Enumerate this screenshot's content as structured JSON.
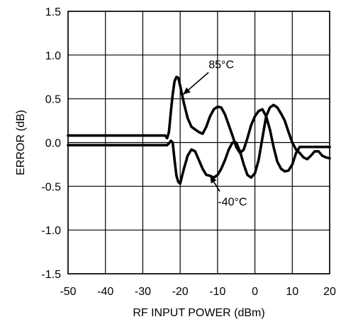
{
  "chart_data": {
    "type": "line",
    "xlabel": "RF INPUT POWER (dBm)",
    "ylabel": "ERROR (dB)",
    "xlim": [
      -50,
      20
    ],
    "ylim": [
      -1.5,
      1.5
    ],
    "xticks": [
      "-50",
      "-40",
      "-30",
      "-20",
      "-10",
      "0",
      "10",
      "20"
    ],
    "yticks": [
      "1.5",
      "1.0",
      "0.5",
      "0.0",
      "-0.5",
      "-1.0",
      "-1.5"
    ],
    "grid": true,
    "series": [
      {
        "name": "85°C",
        "x": [
          -50,
          -24,
          -23.5,
          -23,
          -22.5,
          -22,
          -21.5,
          -21,
          -20.5,
          -20,
          -19,
          -18,
          -17,
          -16,
          -15,
          -14,
          -13,
          -12,
          -11,
          -10,
          -9,
          -8,
          -7,
          -6,
          -5,
          -4,
          -3,
          -2,
          -1,
          0,
          1,
          2,
          3,
          4,
          5,
          6,
          7,
          8,
          9,
          10,
          11,
          12,
          13,
          14,
          15,
          16,
          17,
          18,
          19,
          20
        ],
        "y": [
          0.08,
          0.08,
          0.05,
          0.12,
          0.35,
          0.55,
          0.7,
          0.75,
          0.74,
          0.65,
          0.45,
          0.28,
          0.18,
          0.15,
          0.12,
          0.1,
          0.18,
          0.3,
          0.38,
          0.41,
          0.4,
          0.32,
          0.2,
          0.08,
          -0.05,
          -0.12,
          -0.08,
          0.05,
          0.2,
          0.3,
          0.36,
          0.38,
          0.3,
          0.15,
          -0.05,
          -0.22,
          -0.3,
          -0.33,
          -0.32,
          -0.25,
          -0.12,
          -0.05,
          -0.05,
          -0.05,
          -0.05,
          -0.05,
          -0.05,
          -0.05,
          -0.05,
          -0.05
        ]
      },
      {
        "name": "-40°C",
        "x": [
          -50,
          -23.5,
          -23,
          -22.5,
          -22,
          -21.5,
          -21,
          -20.5,
          -20,
          -19,
          -18,
          -17,
          -16,
          -15,
          -14,
          -13,
          -12,
          -11,
          -10,
          -9,
          -8,
          -7,
          -6,
          -5,
          -4,
          -3,
          -2,
          -1,
          0,
          1,
          2,
          3,
          4,
          5,
          6,
          7,
          8,
          9,
          10,
          11,
          12,
          13,
          14,
          15,
          16,
          17,
          18,
          19,
          20
        ],
        "y": [
          -0.03,
          -0.03,
          -0.01,
          0.02,
          0.0,
          -0.2,
          -0.38,
          -0.45,
          -0.47,
          -0.3,
          -0.15,
          -0.08,
          -0.1,
          -0.2,
          -0.3,
          -0.37,
          -0.38,
          -0.4,
          -0.37,
          -0.3,
          -0.2,
          -0.08,
          0.0,
          0.0,
          -0.1,
          -0.25,
          -0.37,
          -0.4,
          -0.35,
          -0.2,
          0.05,
          0.3,
          0.4,
          0.43,
          0.4,
          0.33,
          0.25,
          0.12,
          0.0,
          -0.08,
          -0.12,
          -0.17,
          -0.19,
          -0.15,
          -0.1,
          -0.1,
          -0.15,
          -0.17,
          -0.18
        ]
      }
    ],
    "annotations": [
      {
        "text": "85°C",
        "x": -9,
        "y": 0.85,
        "arrow_to_x": -19.2,
        "arrow_to_y": 0.55
      },
      {
        "text": "-40°C",
        "x": -6,
        "y": -0.72,
        "arrow_to_x": -12,
        "arrow_to_y": -0.38
      }
    ]
  }
}
